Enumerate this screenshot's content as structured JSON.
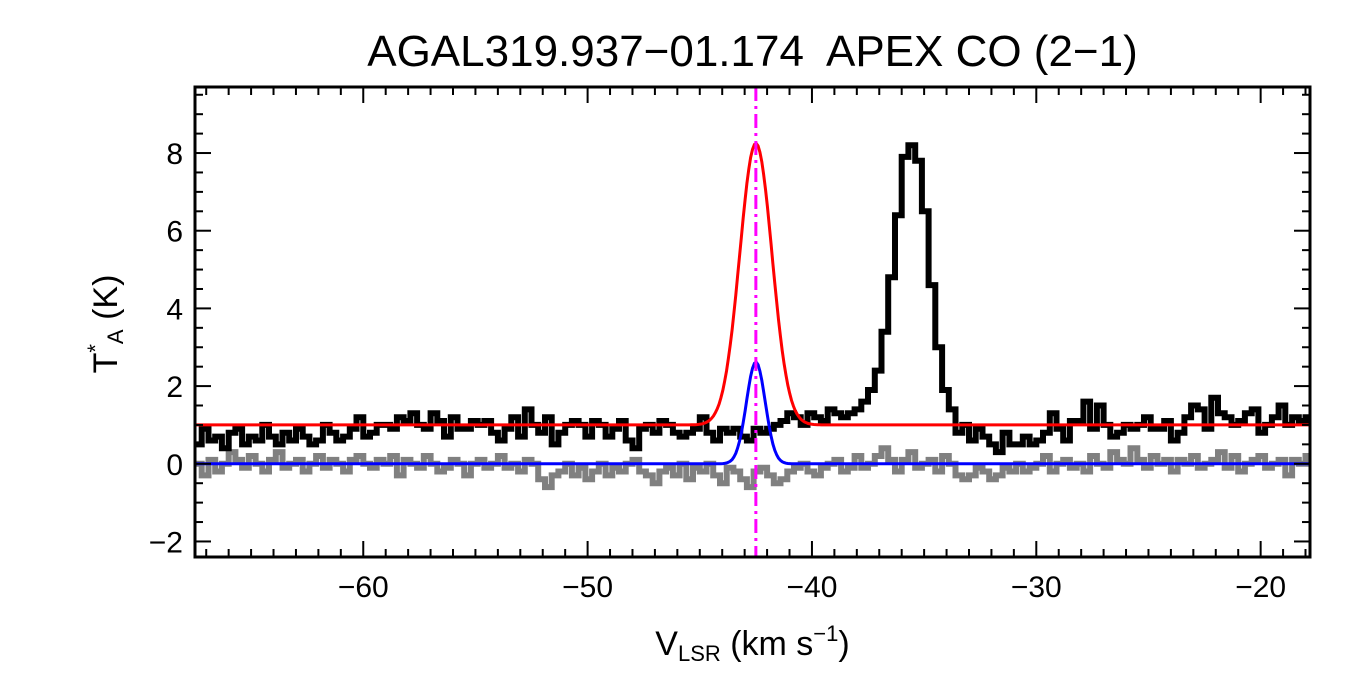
{
  "chart_data": {
    "type": "line",
    "title": "AGAL319.937−01.174  APEX CO (2−1)",
    "xlabel": {
      "main": "V",
      "sub": "LSR",
      "units_pre": " (km s",
      "sup": "−1",
      "units_post": ")"
    },
    "ylabel": {
      "main": "T",
      "sup": "*",
      "sub": "A",
      "units": " (K)"
    },
    "xlim": [
      -67.5,
      -17.8
    ],
    "ylim": [
      -2.4,
      9.7
    ],
    "xticks": [
      -60,
      -50,
      -40,
      -30,
      -20
    ],
    "xtick_labels": [
      "−60",
      "−50",
      "−40",
      "−30",
      "−20"
    ],
    "yticks": [
      -2,
      0,
      2,
      4,
      6,
      8
    ],
    "ytick_labels": [
      "−2",
      "0",
      "2",
      "4",
      "6",
      "8"
    ],
    "vline": {
      "x": -42.5,
      "color": "#ff00ff",
      "style": "dash-dot"
    },
    "series": [
      {
        "name": "spectrum",
        "kind": "step",
        "color": "#000000",
        "x_start": -67.5,
        "dx": 0.3,
        "values": [
          0.5,
          0.9,
          0.6,
          0.7,
          0.4,
          0.8,
          0.9,
          0.5,
          0.7,
          0.6,
          1.0,
          0.7,
          0.5,
          0.8,
          0.6,
          0.9,
          0.7,
          0.5,
          0.6,
          1.0,
          0.8,
          0.6,
          0.7,
          0.9,
          1.2,
          0.7,
          0.8,
          1.0,
          1.0,
          0.9,
          1.2,
          1.1,
          1.3,
          1.0,
          0.9,
          1.3,
          1.1,
          0.7,
          1.2,
          0.9,
          0.9,
          1.1,
          1.0,
          1.1,
          0.8,
          0.6,
          0.9,
          1.2,
          0.7,
          1.4,
          1.0,
          0.8,
          1.2,
          0.5,
          0.8,
          1.0,
          1.1,
          1.0,
          0.7,
          1.1,
          1.0,
          0.7,
          0.9,
          1.1,
          0.6,
          0.4,
          0.9,
          1.0,
          0.8,
          1.1,
          1.0,
          0.8,
          0.7,
          0.8,
          0.9,
          1.2,
          0.8,
          0.6,
          0.9,
          0.8,
          0.9,
          0.7,
          0.6,
          0.9,
          0.8,
          0.9,
          1.0,
          1.1,
          1.3,
          1.2,
          1.0,
          1.3,
          1.2,
          1.1,
          1.4,
          1.3,
          1.2,
          1.3,
          1.4,
          1.6,
          1.9,
          2.4,
          3.4,
          4.8,
          6.4,
          7.9,
          8.2,
          7.8,
          6.5,
          4.6,
          3.0,
          1.9,
          1.4,
          0.8,
          1.0,
          0.6,
          0.9,
          0.7,
          0.5,
          0.3,
          0.8,
          0.5,
          0.5,
          0.7,
          0.5,
          0.6,
          0.8,
          1.3,
          0.9,
          0.6,
          1.1,
          1.1,
          1.6,
          0.9,
          1.5,
          1.0,
          0.7,
          0.8,
          1.0,
          0.9,
          1.0,
          1.2,
          0.9,
          0.9,
          1.1,
          0.6,
          0.8,
          1.2,
          1.5,
          1.4,
          0.9,
          1.7,
          1.3,
          1.2,
          1.0,
          1.1,
          1.3,
          1.4,
          0.8,
          1.0,
          1.2,
          1.5,
          1.0,
          1.2,
          1.1,
          1.2,
          1.1,
          0.9,
          1.2,
          1.4,
          1.0,
          1.1,
          1.2,
          1.3,
          1.0,
          1.1,
          1.2,
          1.6,
          1.1,
          1.2,
          1.0,
          1.1,
          1.2,
          1.3,
          0.9,
          0.9,
          1.0,
          1.1,
          0.8,
          1.2,
          1.0,
          0.8,
          0.9,
          1.2,
          1.4,
          1.1,
          1.2,
          1.1,
          1.3,
          0.9,
          0.7,
          0.8,
          1.1,
          1.2,
          1.0,
          0.9,
          1.0,
          0.9,
          0.8,
          1.2,
          0.9,
          0.9,
          0.6,
          1.1,
          1.0,
          1.0,
          0.9,
          0.8,
          0.9,
          0.8
        ]
      },
      {
        "name": "residual",
        "kind": "step",
        "color": "#808080",
        "x_start": -67.5,
        "dx": 0.3,
        "values": [
          0.0,
          -0.3,
          0.1,
          -0.2,
          0.0,
          0.3,
          0.1,
          -0.1,
          0.2,
          0.0,
          -0.2,
          0.1,
          0.3,
          -0.1,
          0.0,
          0.1,
          -0.2,
          0.0,
          0.2,
          -0.1,
          0.1,
          0.0,
          -0.2,
          0.1,
          0.2,
          0.0,
          -0.1,
          0.1,
          0.0,
          0.2,
          -0.3,
          0.1,
          0.0,
          -0.1,
          0.2,
          0.0,
          -0.2,
          -0.1,
          0.1,
          0.0,
          -0.3,
          0.0,
          0.1,
          -0.1,
          0.0,
          0.2,
          -0.1,
          0.0,
          -0.2,
          0.1,
          0.0,
          -0.4,
          -0.6,
          -0.3,
          -0.2,
          0.0,
          -0.3,
          -0.1,
          -0.4,
          -0.2,
          0.0,
          -0.3,
          -0.1,
          -0.2,
          0.0,
          0.1,
          -0.2,
          -0.3,
          -0.5,
          -0.2,
          -0.1,
          -0.3,
          0.0,
          -0.4,
          -0.1,
          -0.2,
          0.0,
          -0.3,
          -0.5,
          -0.1,
          -0.2,
          -0.4,
          -0.6,
          -0.2,
          -0.1,
          -0.3,
          -0.5,
          -0.4,
          -0.2,
          -0.1,
          0.0,
          -0.2,
          -0.3,
          -0.1,
          0.0,
          0.1,
          -0.2,
          -0.1,
          0.2,
          -0.1,
          0.0,
          0.2,
          0.4,
          0.1,
          -0.2,
          0.1,
          0.3,
          -0.1,
          0.0,
          0.1,
          -0.2,
          0.2,
          0.0,
          -0.3,
          -0.4,
          -0.3,
          -0.1,
          -0.2,
          -0.4,
          -0.3,
          -0.1,
          -0.2,
          0.0,
          -0.2,
          -0.1,
          0.0,
          0.2,
          -0.2,
          0.0,
          0.1,
          -0.1,
          0.0,
          -0.2,
          0.2,
          0.0,
          -0.1,
          0.3,
          0.1,
          0.0,
          0.4,
          0.1,
          -0.1,
          0.2,
          0.0,
          0.1,
          -0.2,
          0.1,
          0.0,
          0.2,
          -0.1,
          0.0,
          0.1,
          0.3,
          -0.1,
          0.2,
          -0.2,
          0.0,
          0.1,
          0.2,
          -0.1,
          0.0,
          0.1,
          -0.3,
          0.1,
          0.0,
          0.2,
          -0.1,
          -0.2,
          0.1,
          0.0,
          0.3,
          0.1,
          -0.1,
          0.0,
          0.2,
          0.1,
          0.0,
          -0.2,
          0.1,
          0.0,
          -0.2,
          0.1,
          0.0,
          -0.1,
          0.1,
          0.3,
          0.0,
          -0.2,
          0.1,
          0.0,
          0.2,
          0.0,
          -0.1,
          0.1,
          0.0,
          0.3,
          -0.1,
          0.1,
          0.0,
          -0.2,
          0.1,
          0.2,
          -0.1,
          0.0,
          -0.2,
          0.1,
          0.0,
          -0.1,
          0.2,
          0.0,
          -0.1,
          0.1,
          0.0,
          -0.2,
          0.1,
          0.0
        ]
      },
      {
        "name": "gaussian fit (total)",
        "kind": "gaussian",
        "color": "#ff0000",
        "baseline": 1.0,
        "amplitude": 7.25,
        "center": -42.5,
        "sigma": 0.72
      },
      {
        "name": "gaussian component",
        "kind": "gaussian",
        "color": "#0000ff",
        "baseline": 0.0,
        "amplitude": 2.62,
        "center": -42.5,
        "sigma": 0.42
      }
    ]
  }
}
